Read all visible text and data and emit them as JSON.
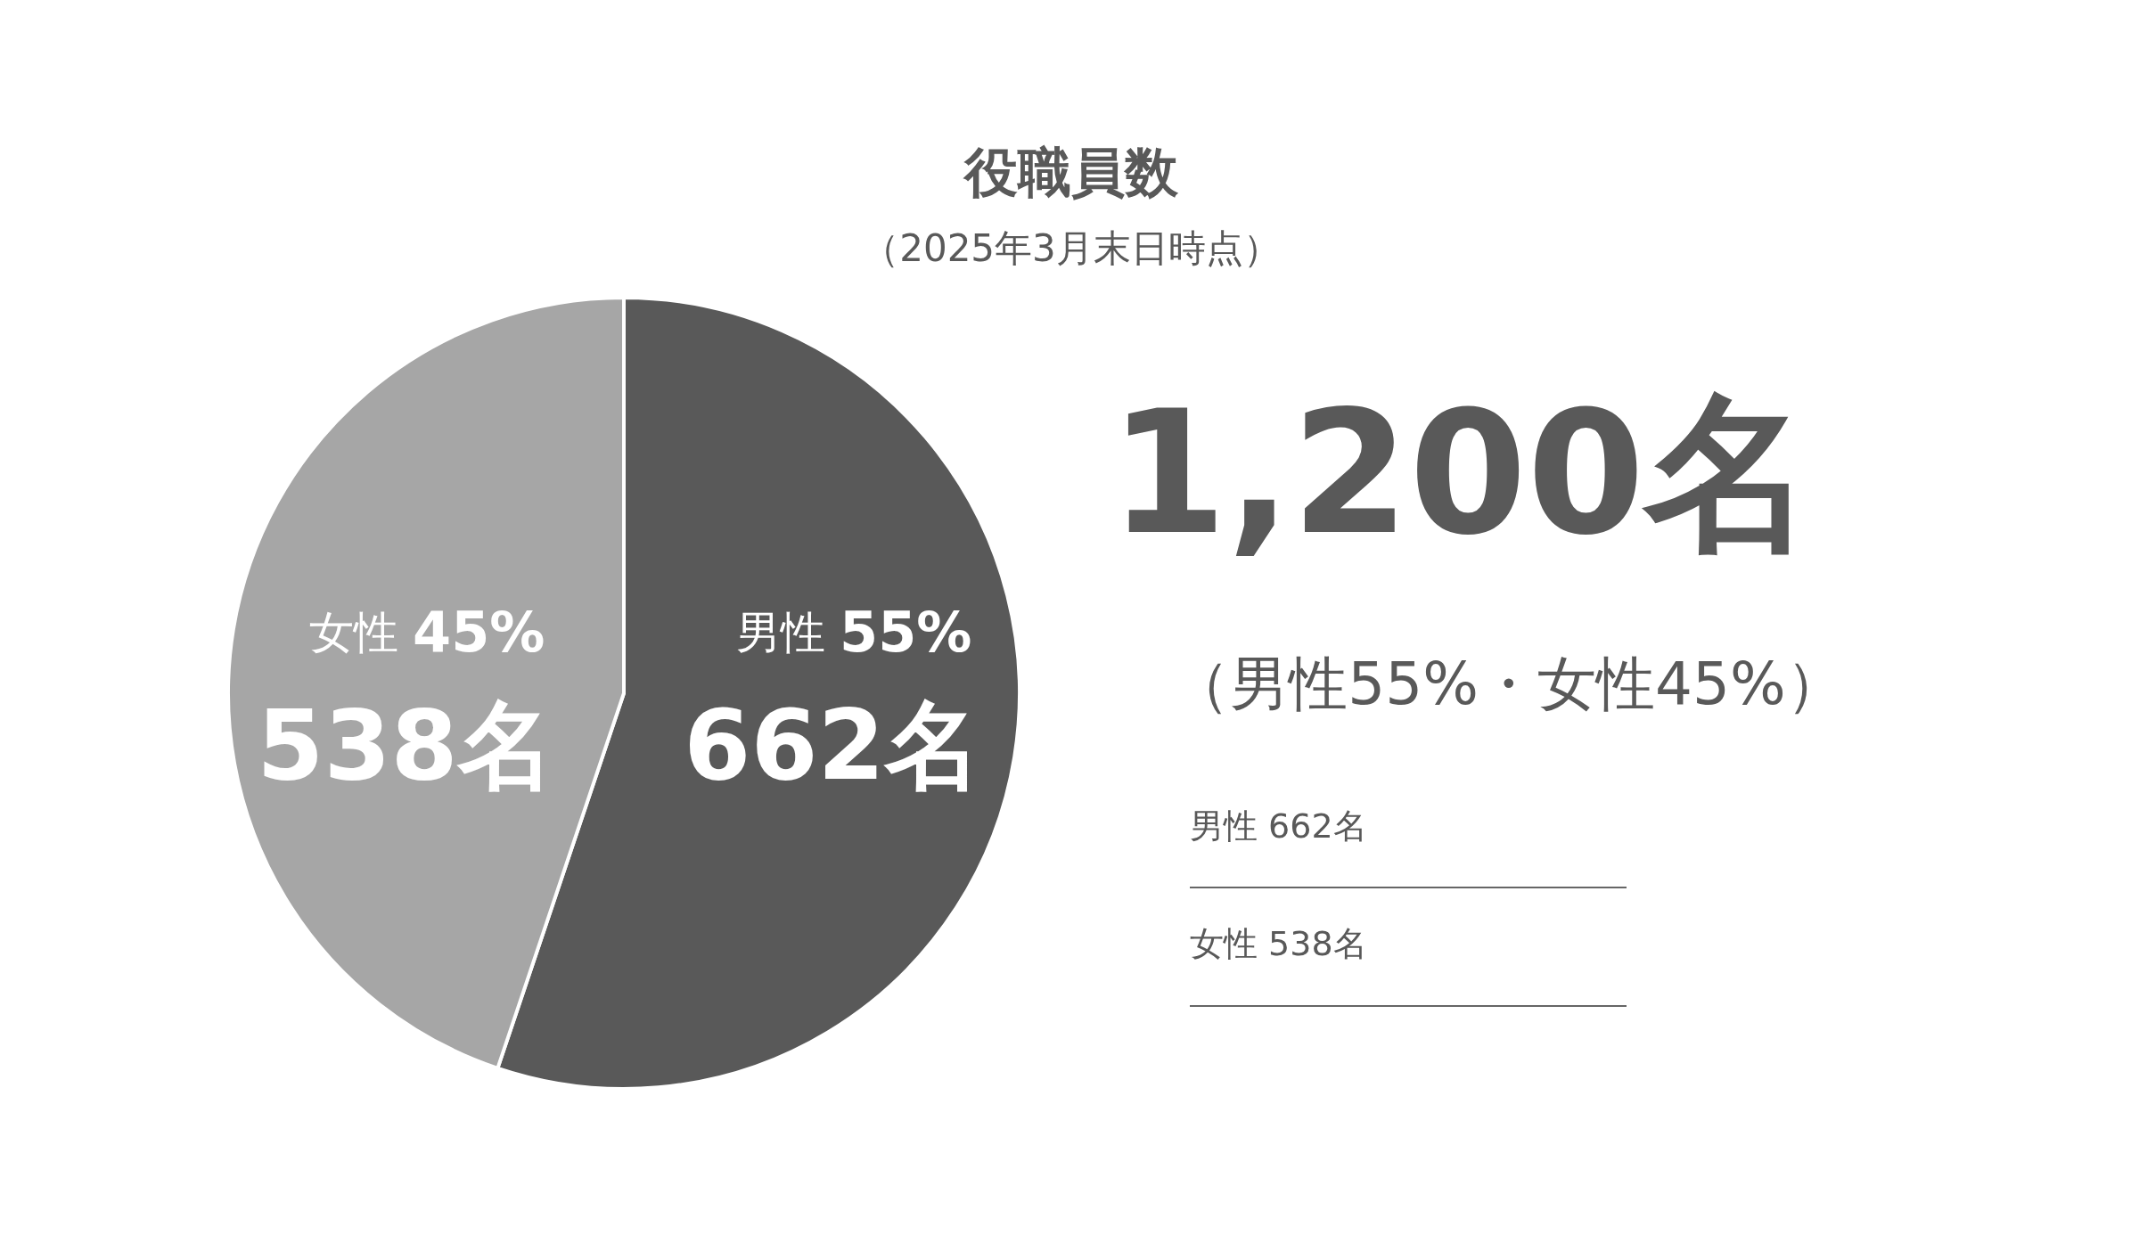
{
  "chart_data": {
    "type": "pie",
    "title": "役職員数",
    "subtitle": "（2025年3月末日時点）",
    "categories": [
      "男性",
      "女性"
    ],
    "values": [
      662,
      538
    ],
    "colors": [
      "#595959",
      "#a6a6a6"
    ],
    "value_labels": [
      "662名",
      "538名"
    ],
    "annotations": [
      "1,200名",
      "（男性55%・女性45%）",
      "男性 662名",
      "女性 538名",
      {
        "text": "55%",
        "x": "男性"
      },
      {
        "text": "45%",
        "x": "女性"
      }
    ]
  }
}
